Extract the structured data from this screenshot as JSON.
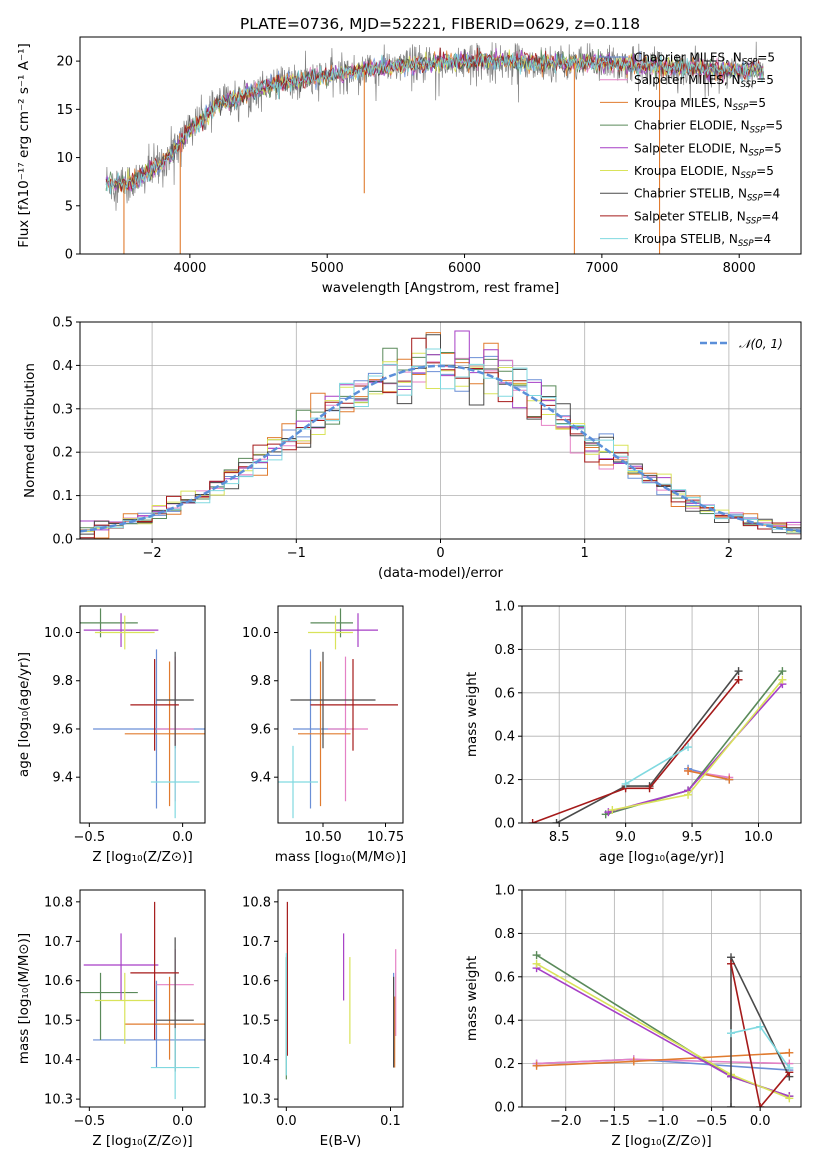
{
  "figure_title": "PLATE=0736, MJD=52221, FIBERID=0629, z=0.118",
  "colors": {
    "Chabrier MILES": "#6b8fd6",
    "Salpeter MILES": "#e581c5",
    "Kroupa MILES": "#e07b2f",
    "Chabrier ELODIE": "#5a8a5a",
    "Salpeter ELODIE": "#a63fc6",
    "Kroupa ELODIE": "#d9e35a",
    "Chabrier STELIB": "#4a4a4a",
    "Salpeter STELIB": "#a51a1a",
    "Kroupa STELIB": "#80d9e0"
  },
  "chart_data": [
    {
      "id": "spectrum",
      "type": "line",
      "xlabel": "wavelength [Angstrom, rest frame]",
      "ylabel": "Flux [fλ10⁻¹⁷ erg cm⁻² s⁻¹ A⁻¹]",
      "xlim": [
        3200,
        8450
      ],
      "ylim": [
        0,
        22.5
      ],
      "xticks": [
        4000,
        5000,
        6000,
        7000,
        8000
      ],
      "yticks": [
        0,
        5,
        10,
        15,
        20
      ],
      "grid": false,
      "legend": "right",
      "data_x_range": [
        3390,
        8180
      ],
      "legend_entries": [
        {
          "name": "Chabrier MILES",
          "label": "Chabrier MILES, N",
          "sub": "SSP",
          "tail": "=5"
        },
        {
          "name": "Salpeter MILES",
          "label": "Salpeter MILES, N",
          "sub": "SSP",
          "tail": "=5"
        },
        {
          "name": "Kroupa MILES",
          "label": "Kroupa MILES, N",
          "sub": "SSP",
          "tail": "=5"
        },
        {
          "name": "Chabrier ELODIE",
          "label": "Chabrier ELODIE, N",
          "sub": "SSP",
          "tail": "=5"
        },
        {
          "name": "Salpeter ELODIE",
          "label": "Salpeter ELODIE, N",
          "sub": "SSP",
          "tail": "=5"
        },
        {
          "name": "Kroupa ELODIE",
          "label": "Kroupa ELODIE, N",
          "sub": "SSP",
          "tail": "=5"
        },
        {
          "name": "Chabrier STELIB",
          "label": "Chabrier STELIB, N",
          "sub": "SSP",
          "tail": "=4"
        },
        {
          "name": "Salpeter STELIB",
          "label": "Salpeter STELIB, N",
          "sub": "SSP",
          "tail": "=4"
        },
        {
          "name": "Kroupa STELIB",
          "label": "Kroupa STELIB, N",
          "sub": "SSP",
          "tail": "=4"
        }
      ],
      "continuum": {
        "x": [
          3390,
          3500,
          3600,
          3700,
          3800,
          3900,
          4000,
          4100,
          4200,
          4300,
          4400,
          4500,
          4600,
          4700,
          4800,
          4900,
          5000,
          5200,
          5400,
          5600,
          5800,
          6000,
          6200,
          6400,
          6600,
          6800,
          7000,
          7200,
          7400,
          7600,
          7800,
          8000,
          8180
        ],
        "y": [
          7.5,
          7.3,
          7.5,
          8.5,
          9.5,
          11.0,
          13.0,
          14.0,
          15.5,
          16.0,
          16.5,
          17.0,
          17.5,
          17.8,
          18.0,
          18.3,
          18.5,
          19.0,
          19.3,
          19.6,
          19.8,
          20.0,
          20.0,
          20.0,
          19.8,
          19.8,
          19.8,
          19.6,
          19.5,
          19.3,
          19.2,
          19.0,
          19.0
        ]
      },
      "dips": [
        {
          "x": 3520,
          "y": 0
        },
        {
          "x": 3930,
          "y": 0
        },
        {
          "x": 5270,
          "y": 6.3
        },
        {
          "x": 6800,
          "y": 0
        },
        {
          "x": 7420,
          "y": 0
        }
      ]
    },
    {
      "id": "residuals",
      "type": "line",
      "xlabel": "(data-model)/error",
      "ylabel": "Normed distribution",
      "xlim": [
        -2.5,
        2.5
      ],
      "ylim": [
        0,
        0.5
      ],
      "xticks": [
        -2,
        -1,
        0,
        1,
        2
      ],
      "yticks": [
        0.0,
        0.1,
        0.2,
        0.3,
        0.4,
        0.5
      ],
      "grid": true,
      "legend": "top-right",
      "gaussian_label": "𝒩(0, 1)",
      "gaussian": {
        "mean": 0,
        "sigma": 1
      }
    },
    {
      "id": "age-vs-Z",
      "type": "scatter",
      "xlabel": "Z [log₁₀(Z/Z⊙)]",
      "ylabel": "age  [log₁₀(age/yr)]",
      "xlim": [
        -0.55,
        0.12
      ],
      "ylim": [
        9.21,
        10.11
      ],
      "xticks": [
        -0.5,
        0.0
      ],
      "yticks": [
        9.4,
        9.6,
        9.8,
        10.0
      ],
      "grid": false
    },
    {
      "id": "age-vs-mass",
      "type": "scatter",
      "xlabel": "mass [log₁₀(M/M⊙)]",
      "xlim": [
        10.32,
        10.82
      ],
      "ylim": [
        9.21,
        10.11
      ],
      "xticks": [
        10.5,
        10.75
      ],
      "yticks": [
        9.4,
        9.6,
        9.8,
        10.0
      ],
      "grid": false
    },
    {
      "id": "weight-vs-age",
      "type": "line",
      "xlabel": "age  [log₁₀(age/yr)]",
      "ylabel": "mass weight",
      "xlim": [
        8.22,
        10.32
      ],
      "ylim": [
        0,
        1.0
      ],
      "xticks": [
        8.5,
        9.0,
        9.5,
        10.0
      ],
      "yticks": [
        0.0,
        0.2,
        0.4,
        0.6,
        0.8,
        1.0
      ],
      "grid": true
    },
    {
      "id": "mass-vs-Z",
      "type": "scatter",
      "xlabel": "Z [log₁₀(Z/Z⊙)]",
      "ylabel": "mass [log₁₀(M/M⊙)]",
      "xlim": [
        -0.55,
        0.12
      ],
      "ylim": [
        10.28,
        10.83
      ],
      "xticks": [
        -0.5,
        0.0
      ],
      "yticks": [
        10.3,
        10.4,
        10.5,
        10.6,
        10.7,
        10.8
      ],
      "grid": false
    },
    {
      "id": "mass-vs-ebv",
      "type": "scatter",
      "xlabel": "E(B-V)",
      "xlim": [
        -0.008,
        0.112
      ],
      "ylim": [
        10.28,
        10.83
      ],
      "xticks": [
        0.0,
        0.1
      ],
      "yticks": [
        10.3,
        10.4,
        10.5,
        10.6,
        10.7,
        10.8
      ],
      "grid": false
    },
    {
      "id": "weight-vs-Z",
      "type": "line",
      "xlabel": "Z [log₁₀(Z/Z⊙)]",
      "ylabel": "mass weight",
      "xlim": [
        -2.45,
        0.42
      ],
      "ylim": [
        0,
        1.0
      ],
      "xticks": [
        -2.0,
        -1.5,
        -1.0,
        -0.5,
        0.0
      ],
      "yticks": [
        0.0,
        0.2,
        0.4,
        0.6,
        0.8,
        1.0
      ],
      "grid": true
    }
  ],
  "models": [
    {
      "name": "Chabrier MILES",
      "age": 9.6,
      "age_err": 0.33,
      "Z": -0.14,
      "Z_err": 0.34,
      "mass": 10.45,
      "mass_err_lo": 0.07,
      "mass_err_hi": 0.15,
      "ebv": 0.103,
      "ebv_lo": 10.39,
      "ebv_hi": 10.62,
      "wage_age": [
        9.47,
        9.78
      ],
      "wage_w": [
        0.25,
        0.2
      ],
      "wz_Z": [
        -2.3,
        -1.3,
        0.3
      ],
      "wz_w": [
        0.2,
        0.22,
        0.17
      ]
    },
    {
      "name": "Salpeter MILES",
      "age": 9.6,
      "age_err": 0.3,
      "Z": -0.04,
      "Z_err": 0.1,
      "mass": 10.59,
      "mass_err_lo": 0.07,
      "mass_err_hi": 0.09,
      "ebv": 0.105,
      "ebv_lo": 10.46,
      "ebv_hi": 10.68,
      "wage_age": [
        9.47,
        9.78
      ],
      "wage_w": [
        0.24,
        0.21
      ],
      "wz_Z": [
        -2.3,
        -1.3,
        0.3
      ],
      "wz_w": [
        0.2,
        0.22,
        0.2
      ]
    },
    {
      "name": "Kroupa MILES",
      "age": 9.58,
      "age_err": 0.3,
      "Z": -0.07,
      "Z_err": 0.24,
      "mass": 10.49,
      "mass_err_lo": 0.09,
      "mass_err_hi": 0.12,
      "ebv": 0.104,
      "ebv_lo": 10.38,
      "ebv_hi": 10.56,
      "wage_age": [
        9.47,
        9.78
      ],
      "wage_w": [
        0.24,
        0.2
      ],
      "wz_Z": [
        -2.3,
        -1.3,
        0.3
      ],
      "wz_w": [
        0.19,
        0.21,
        0.25
      ]
    },
    {
      "name": "Chabrier ELODIE",
      "age": 10.04,
      "age_err": 0.06,
      "Z": -0.44,
      "Z_err": 0.2,
      "mass": 10.57,
      "mass_err_lo": 0.12,
      "mass_err_hi": 0.05,
      "ebv": 0.0,
      "ebv_lo": 10.35,
      "ebv_hi": 10.66,
      "wage_age": [
        8.85,
        9.47,
        10.18
      ],
      "wage_w": [
        0.04,
        0.15,
        0.7
      ],
      "wz_Z": [
        -2.3,
        -0.3,
        0.3
      ],
      "wz_w": [
        0.7,
        0.14,
        0.05
      ]
    },
    {
      "name": "Salpeter ELODIE",
      "age": 10.01,
      "age_err": 0.07,
      "Z": -0.33,
      "Z_err": 0.2,
      "mass": 10.64,
      "mass_err_lo": 0.09,
      "mass_err_hi": 0.08,
      "ebv": 0.055,
      "ebv_lo": 10.55,
      "ebv_hi": 10.72,
      "wage_age": [
        8.87,
        9.47,
        10.18
      ],
      "wage_w": [
        0.05,
        0.15,
        0.64
      ],
      "wz_Z": [
        -2.3,
        -0.3,
        0.3
      ],
      "wz_w": [
        0.64,
        0.14,
        0.05
      ]
    },
    {
      "name": "Kroupa ELODIE",
      "age": 10.0,
      "age_err": 0.07,
      "Z": -0.31,
      "Z_err": 0.16,
      "mass": 10.55,
      "mass_err_lo": 0.11,
      "mass_err_hi": 0.07,
      "ebv": 0.061,
      "ebv_lo": 10.44,
      "ebv_hi": 10.66,
      "wage_age": [
        8.9,
        9.47,
        10.18
      ],
      "wage_w": [
        0.06,
        0.13,
        0.66
      ],
      "wz_Z": [
        -2.3,
        -0.3,
        0.3
      ],
      "wz_w": [
        0.66,
        0.15,
        0.04
      ]
    },
    {
      "name": "Chabrier STELIB",
      "age": 9.72,
      "age_err": 0.2,
      "Z": -0.04,
      "Z_err": 0.1,
      "mass": 10.5,
      "mass_err_lo": 0.13,
      "mass_err_hi": 0.21,
      "ebv": 0.103,
      "ebv_lo": 10.38,
      "ebv_hi": 10.61,
      "wage_age": [
        8.48,
        9.0,
        9.18,
        9.85
      ],
      "wage_w": [
        0.0,
        0.17,
        0.17,
        0.7
      ],
      "wz_Z": [
        -0.3,
        -0.3,
        0.3
      ],
      "wz_w": [
        0.0,
        0.69,
        0.14
      ]
    },
    {
      "name": "Salpeter STELIB",
      "age": 9.7,
      "age_err": 0.19,
      "Z": -0.15,
      "Z_err": 0.13,
      "mass": 10.62,
      "mass_err_lo": 0.17,
      "mass_err_hi": 0.18,
      "ebv": 0.001,
      "ebv_lo": 10.41,
      "ebv_hi": 10.8,
      "wage_age": [
        8.3,
        9.0,
        9.18,
        9.85
      ],
      "wage_w": [
        0.0,
        0.16,
        0.16,
        0.66
      ],
      "wz_Z": [
        -0.3,
        0.0,
        0.3
      ],
      "wz_w": [
        0.66,
        0.0,
        0.16
      ]
    },
    {
      "name": "Kroupa STELIB",
      "age": 9.38,
      "age_err": 0.15,
      "Z": -0.04,
      "Z_err": 0.13,
      "mass": 10.38,
      "mass_err_lo": 0.08,
      "mass_err_hi": 0.1,
      "ebv": 0.0,
      "ebv_lo": 10.36,
      "ebv_hi": 10.67,
      "wage_age": [
        9.0,
        9.47
      ],
      "wage_w": [
        0.18,
        0.35
      ],
      "wz_Z": [
        -0.3,
        0.0,
        0.3
      ],
      "wz_w": [
        0.34,
        0.37,
        0.18
      ]
    }
  ]
}
